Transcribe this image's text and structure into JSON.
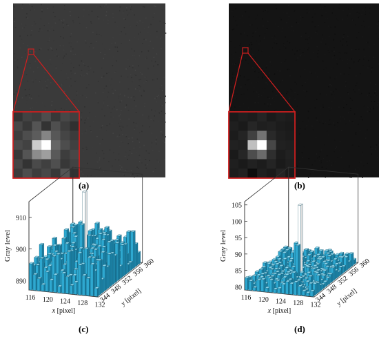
{
  "panels": {
    "a": {
      "label": "(a)"
    },
    "b": {
      "label": "(b)"
    },
    "c": {
      "label": "(c)"
    },
    "d": {
      "label": "(d)"
    }
  },
  "images": {
    "a": {
      "background": "#3a3a3a",
      "noise": "#4a4a4a"
    },
    "b": {
      "background": "#141414",
      "noise": "#202020"
    }
  },
  "zoom_color": "#cc1f1f",
  "inset_a": [
    [
      0.2,
      0.26,
      0.24,
      0.3,
      0.22,
      0.28,
      0.25
    ],
    [
      0.28,
      0.22,
      0.33,
      0.2,
      0.31,
      0.24,
      0.19
    ],
    [
      0.24,
      0.3,
      0.36,
      0.52,
      0.34,
      0.27,
      0.23
    ],
    [
      0.29,
      0.26,
      0.8,
      1.0,
      0.4,
      0.3,
      0.25
    ],
    [
      0.22,
      0.33,
      0.55,
      0.62,
      0.35,
      0.24,
      0.28
    ],
    [
      0.27,
      0.2,
      0.29,
      0.25,
      0.31,
      0.22,
      0.26
    ],
    [
      0.23,
      0.3,
      0.24,
      0.28,
      0.22,
      0.33,
      0.2
    ]
  ],
  "inset_b": [
    [
      0.1,
      0.12,
      0.11,
      0.14,
      0.1,
      0.12,
      0.11
    ],
    [
      0.12,
      0.1,
      0.15,
      0.12,
      0.13,
      0.11,
      0.1
    ],
    [
      0.11,
      0.14,
      0.25,
      0.45,
      0.16,
      0.12,
      0.11
    ],
    [
      0.13,
      0.12,
      0.75,
      1.0,
      0.28,
      0.13,
      0.12
    ],
    [
      0.1,
      0.15,
      0.3,
      0.42,
      0.18,
      0.11,
      0.13
    ],
    [
      0.12,
      0.1,
      0.13,
      0.11,
      0.14,
      0.1,
      0.12
    ],
    [
      0.11,
      0.13,
      0.05,
      0.12,
      0.1,
      0.14,
      0.1
    ]
  ],
  "chart_data": [
    {
      "type": "bar3d",
      "ylabel": "Gray level",
      "xlabel_italic": "x",
      "xlabel_unit": " [pixel]",
      "zlabel_italic": "y",
      "zlabel_unit": " [pixel]",
      "yticks": [
        890,
        900,
        910
      ],
      "ylim": [
        887,
        915
      ],
      "xticks": [
        116,
        120,
        124,
        128,
        132
      ],
      "zticks": [
        344,
        348,
        352,
        356,
        360
      ],
      "baseline_range": [
        889,
        899
      ],
      "peak": {
        "x": 124,
        "y": 352,
        "value": 914
      },
      "color": "#2ea8d0"
    },
    {
      "type": "bar3d",
      "ylabel": "Gray level",
      "xlabel_italic": "x",
      "xlabel_unit": " [pixel]",
      "zlabel_italic": "y",
      "zlabel_unit": " [pixel]",
      "yticks": [
        80,
        85,
        90,
        95,
        100,
        105
      ],
      "ylim": [
        79,
        106
      ],
      "xticks": [
        116,
        120,
        124,
        128,
        132
      ],
      "zticks": [
        344,
        348,
        352,
        356,
        360
      ],
      "baseline_range": [
        80,
        83
      ],
      "peak": {
        "x": 124,
        "y": 352,
        "value": 101
      },
      "color": "#2ea8d0"
    }
  ]
}
